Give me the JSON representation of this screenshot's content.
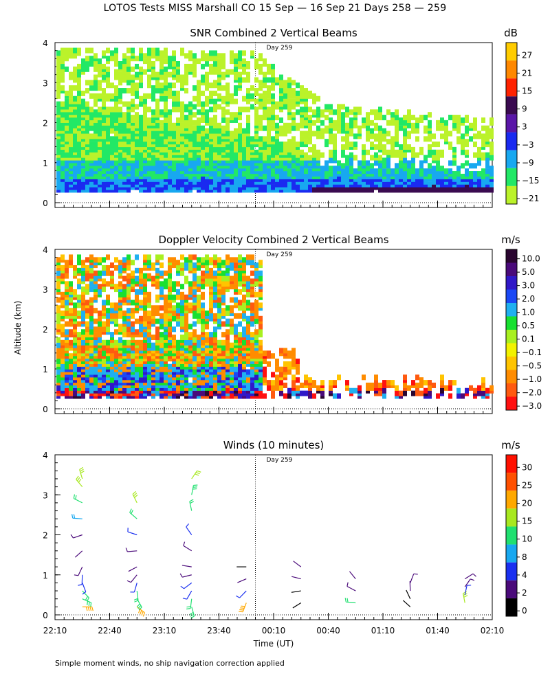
{
  "title": "LOTOS Tests MISS Marshall CO  15 Sep — 16 Sep 21 Days 258 — 259",
  "footnote": "Simple moment winds, no ship navigation correction applied",
  "chart_data": [
    {
      "type": "heatmap",
      "title": "SNR Combined 2 Vertical Beams",
      "units": "dB",
      "annotation": "Day 259",
      "day_boundary_time": "00:00",
      "ylim": [
        0,
        4
      ],
      "yticks": [
        0,
        1,
        2,
        3,
        4
      ],
      "colorbar": {
        "ticks": [
          "27",
          "21",
          "15",
          "9",
          "3",
          "−3",
          "−9",
          "−15",
          "−21"
        ],
        "colors": [
          "#ffcc00",
          "#ff8800",
          "#ff2200",
          "#3a0a50",
          "#5a16a8",
          "#1a2af0",
          "#18a8f0",
          "#22e866",
          "#bbf22a"
        ]
      },
      "description_profile": [
        {
          "time_frac": 0.0,
          "top_km": 3.8,
          "dense_top_km": 2.4
        },
        {
          "time_frac": 0.45,
          "top_km": 3.7,
          "dense_top_km": 1.5
        },
        {
          "time_frac": 0.6,
          "top_km": 2.5,
          "dense_top_km": 1.0
        },
        {
          "time_frac": 1.0,
          "top_km": 2.0,
          "dense_top_km": 0.7
        }
      ]
    },
    {
      "type": "heatmap",
      "title": "Doppler Velocity Combined 2 Vertical Beams",
      "units": "m/s",
      "annotation": "Day 259",
      "ylim": [
        0,
        4
      ],
      "yticks": [
        0,
        1,
        2,
        3,
        4
      ],
      "ylabel": "Altitude (km)",
      "colorbar": {
        "ticks": [
          "10.0",
          "5.0",
          "3.0",
          "2.0",
          "1.0",
          "0.5",
          "0.1",
          "−0.1",
          "−0.5",
          "−1.0",
          "−2.0",
          "−3.0"
        ],
        "colors": [
          "#2a0630",
          "#4a0a7a",
          "#3018c8",
          "#1a48f5",
          "#20b0f0",
          "#18e030",
          "#a8f020",
          "#f2f200",
          "#ffc400",
          "#ff8c00",
          "#ff5a10",
          "#ff1010"
        ]
      }
    },
    {
      "type": "scatter",
      "subtype": "wind-barbs",
      "title": "Winds (10 minutes)",
      "units": "m/s",
      "annotation": "Day 259",
      "ylim": [
        0,
        4
      ],
      "yticks": [
        0,
        1,
        2,
        3,
        4
      ],
      "xlabel": "Time (UT)",
      "xticks": [
        "22:10",
        "22:40",
        "23:10",
        "23:40",
        "00:10",
        "00:40",
        "01:10",
        "01:40",
        "02:10"
      ],
      "colorbar": {
        "ticks": [
          "30",
          "25",
          "20",
          "15",
          "10",
          "8",
          "4",
          "2",
          "0"
        ],
        "colors": [
          "#ff1000",
          "#ff5000",
          "#ffa800",
          "#a8e820",
          "#20e070",
          "#18a8f0",
          "#1a30f0",
          "#4a0a7a",
          "#000000"
        ]
      },
      "profiles": [
        {
          "time": "22:25",
          "altitudes_km": [
            0.2,
            0.4,
            0.6,
            0.8,
            1.0,
            1.2,
            1.6,
            2.0,
            2.4,
            2.8,
            3.2,
            3.4
          ],
          "speeds_ms": [
            22,
            14,
            10,
            6,
            4,
            3,
            2,
            3,
            8,
            12,
            15,
            16
          ]
        },
        {
          "time": "22:55",
          "altitudes_km": [
            0.2,
            0.4,
            0.6,
            0.8,
            1.0,
            1.2,
            1.6,
            2.0,
            2.4,
            2.8
          ],
          "speeds_ms": [
            20,
            14,
            10,
            4,
            3,
            2,
            3,
            4,
            10,
            16
          ]
        },
        {
          "time": "23:25",
          "altitudes_km": [
            0.2,
            0.4,
            0.6,
            0.8,
            1.0,
            1.2,
            1.6,
            2.0,
            2.6,
            3.0,
            3.4
          ],
          "speeds_ms": [
            14,
            10,
            6,
            4,
            3,
            2,
            3,
            4,
            10,
            14,
            16
          ]
        },
        {
          "time": "23:55",
          "altitudes_km": [
            0.3,
            0.6,
            0.9,
            1.2
          ],
          "speeds_ms": [
            22,
            4,
            2,
            1
          ]
        },
        {
          "time": "00:25",
          "altitudes_km": [
            0.3,
            0.6,
            0.9,
            1.2
          ],
          "speeds_ms": [
            0,
            1,
            2,
            2
          ]
        },
        {
          "time": "00:55",
          "altitudes_km": [
            0.3,
            0.6,
            0.9
          ],
          "speeds_ms": [
            12,
            3,
            2
          ]
        },
        {
          "time": "01:25",
          "altitudes_km": [
            0.2,
            0.4,
            0.6,
            0.8
          ],
          "speeds_ms": [
            0,
            0,
            2,
            3
          ]
        },
        {
          "time": "01:55",
          "altitudes_km": [
            0.3,
            0.5,
            0.7,
            0.9
          ],
          "speeds_ms": [
            15,
            4,
            3,
            3
          ]
        }
      ]
    }
  ]
}
